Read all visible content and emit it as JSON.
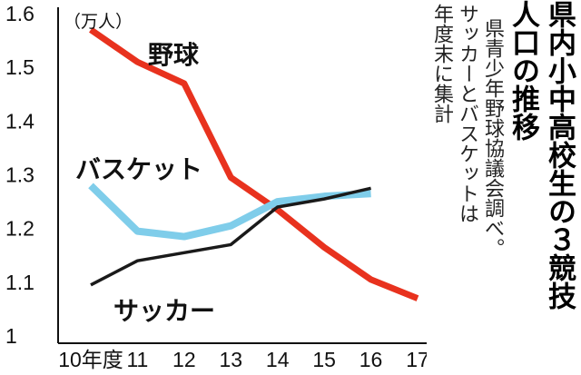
{
  "chart_data": {
    "type": "line",
    "unit_label": "（万人）",
    "x": [
      "10年度",
      "11",
      "12",
      "13",
      "14",
      "15",
      "16",
      "17"
    ],
    "ylim": [
      1.0,
      1.6
    ],
    "yticks": [
      "1",
      "1.1",
      "1.2",
      "1.3",
      "1.4",
      "1.5",
      "1.6"
    ],
    "series": [
      {
        "name": "野球",
        "color": "#e8321e",
        "values": [
          1.57,
          1.51,
          1.47,
          1.295,
          1.235,
          1.165,
          1.105,
          1.07
        ]
      },
      {
        "name": "バスケット",
        "color": "#7fcdea",
        "values": [
          1.28,
          1.195,
          1.185,
          1.205,
          1.25,
          1.26,
          1.265,
          null
        ]
      },
      {
        "name": "サッカー",
        "color": "#1a1a1a",
        "values": [
          1.095,
          1.14,
          1.155,
          1.17,
          1.24,
          1.255,
          1.275,
          null
        ]
      }
    ],
    "grid": false,
    "legend": "inline labels"
  },
  "headline": {
    "col1": "県内小中高校生の３競技",
    "col2": "人口の推移"
  },
  "note": {
    "col1": "県青少年野球協議会調べ。",
    "col2": "サッカーとバスケットは",
    "col3": "年度末に集計"
  },
  "colors": {
    "axis": "#111111"
  }
}
